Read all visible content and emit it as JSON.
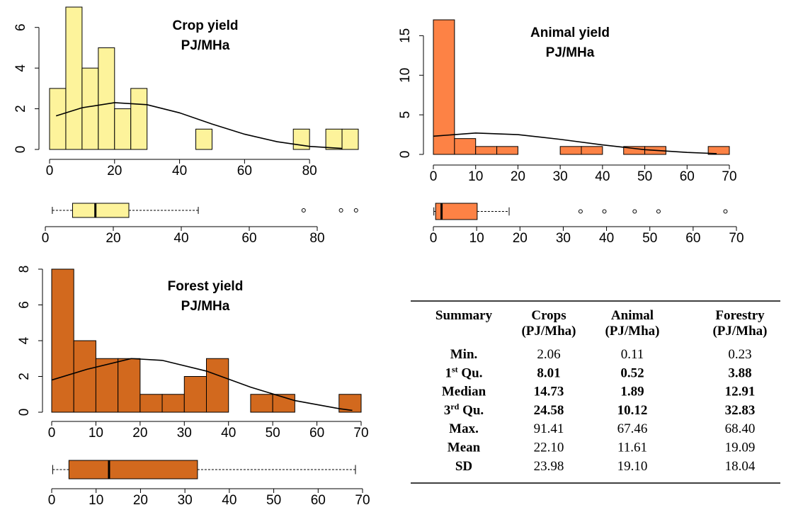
{
  "chart_data": [
    {
      "type": "histogram",
      "title": "Crop yield",
      "subtitle": "PJ/MHa",
      "color": "#fdf39b",
      "bins": [
        0,
        5,
        10,
        15,
        20,
        25,
        30,
        35,
        40,
        45,
        50,
        55,
        60,
        65,
        70,
        75,
        80,
        85,
        90,
        95
      ],
      "counts": [
        3,
        7,
        4,
        5,
        2,
        3,
        0,
        0,
        0,
        1,
        0,
        0,
        0,
        0,
        0,
        1,
        0,
        1,
        1
      ],
      "curve": {
        "x": [
          2,
          10,
          20,
          30,
          40,
          50,
          60,
          70,
          80,
          90
        ],
        "y": [
          1.65,
          2.05,
          2.3,
          2.2,
          1.8,
          1.25,
          0.75,
          0.38,
          0.15,
          0.05
        ]
      },
      "xlim": [
        0,
        95
      ],
      "xticks": [
        0,
        20,
        40,
        60,
        80
      ],
      "ylim": [
        0,
        7
      ],
      "yticks": [
        0,
        2,
        4,
        6
      ]
    },
    {
      "type": "boxplot",
      "color": "#fdf39b",
      "whisker_low": 2.06,
      "q1": 8.01,
      "median": 14.73,
      "q3": 24.58,
      "whisker_high": 45,
      "outliers": [
        76,
        87,
        91.41
      ],
      "xlim": [
        0,
        95
      ],
      "xticks": [
        0,
        20,
        40,
        60,
        80
      ]
    },
    {
      "type": "histogram",
      "title": "Animal yield",
      "subtitle": "PJ/MHa",
      "color": "#fd8245",
      "bins": [
        0,
        5,
        10,
        15,
        20,
        25,
        30,
        35,
        40,
        45,
        50,
        55,
        60,
        65,
        70
      ],
      "counts": [
        17,
        2,
        1,
        1,
        0,
        0,
        1,
        1,
        0,
        1,
        1,
        0,
        0,
        1
      ],
      "curve": {
        "x": [
          0,
          10,
          20,
          30,
          40,
          50,
          60,
          67
        ],
        "y": [
          2.3,
          2.7,
          2.5,
          1.9,
          1.2,
          0.6,
          0.25,
          0.1
        ]
      },
      "xlim": [
        0,
        70
      ],
      "xticks": [
        0,
        10,
        20,
        30,
        40,
        50,
        60,
        70
      ],
      "ylim": [
        0,
        17
      ],
      "yticks": [
        0,
        5,
        10,
        15
      ]
    },
    {
      "type": "boxplot",
      "color": "#fd8245",
      "whisker_low": 0.11,
      "q1": 0.52,
      "median": 1.89,
      "q3": 10.12,
      "whisker_high": 17.5,
      "outliers": [
        34,
        39.5,
        46.5,
        52,
        67.46
      ],
      "xlim": [
        0,
        70
      ],
      "xticks": [
        0,
        10,
        20,
        30,
        40,
        50,
        60,
        70
      ]
    },
    {
      "type": "histogram",
      "title": "Forest yield",
      "subtitle": "PJ/MHa",
      "color": "#d2691e",
      "bins": [
        0,
        5,
        10,
        15,
        20,
        25,
        30,
        35,
        40,
        45,
        50,
        55,
        60,
        65,
        70
      ],
      "counts": [
        8,
        4,
        3,
        3,
        1,
        1,
        2,
        3,
        0,
        1,
        1,
        0,
        0,
        1
      ],
      "curve": {
        "x": [
          0,
          8,
          18,
          25,
          35,
          45,
          55,
          65,
          68
        ],
        "y": [
          1.8,
          2.4,
          3.0,
          2.9,
          2.3,
          1.4,
          0.65,
          0.2,
          0.1
        ]
      },
      "xlim": [
        0,
        70
      ],
      "xticks": [
        0,
        10,
        20,
        30,
        40,
        50,
        60,
        70
      ],
      "ylim": [
        0,
        8
      ],
      "yticks": [
        0,
        2,
        4,
        6,
        8
      ]
    },
    {
      "type": "boxplot",
      "color": "#d2691e",
      "whisker_low": 0.23,
      "q1": 3.88,
      "median": 12.91,
      "q3": 32.83,
      "whisker_high": 68.4,
      "outliers": [],
      "xlim": [
        0,
        70
      ],
      "xticks": [
        0,
        10,
        20,
        30,
        40,
        50,
        60,
        70
      ]
    }
  ],
  "table": {
    "header": [
      [
        "Summary"
      ],
      [
        "Crops",
        "(PJ/Mha)"
      ],
      [
        "Animal",
        "(PJ/Mha)"
      ],
      [
        "Forestry",
        "(PJ/Mha)"
      ]
    ],
    "rows": [
      {
        "label": [
          "Min."
        ],
        "values": [
          "2.06",
          "0.11",
          "0.23"
        ],
        "bold_values": false
      },
      {
        "label": [
          "1",
          "st",
          " Qu."
        ],
        "values": [
          "8.01",
          "0.52",
          "3.88"
        ],
        "bold_values": true
      },
      {
        "label": [
          "Median"
        ],
        "values": [
          "14.73",
          "1.89",
          "12.91"
        ],
        "bold_values": true
      },
      {
        "label": [
          "3",
          "rd",
          " Qu."
        ],
        "values": [
          "24.58",
          "10.12",
          "32.83"
        ],
        "bold_values": true
      },
      {
        "label": [
          "Max."
        ],
        "values": [
          "91.41",
          "67.46",
          "68.40"
        ],
        "bold_values": false
      },
      {
        "label": [
          "Mean"
        ],
        "values": [
          "22.10",
          "11.61",
          "19.09"
        ],
        "bold_values": false
      },
      {
        "label": [
          "SD"
        ],
        "values": [
          "23.98",
          "19.10",
          "18.04"
        ],
        "bold_values": false
      }
    ]
  }
}
